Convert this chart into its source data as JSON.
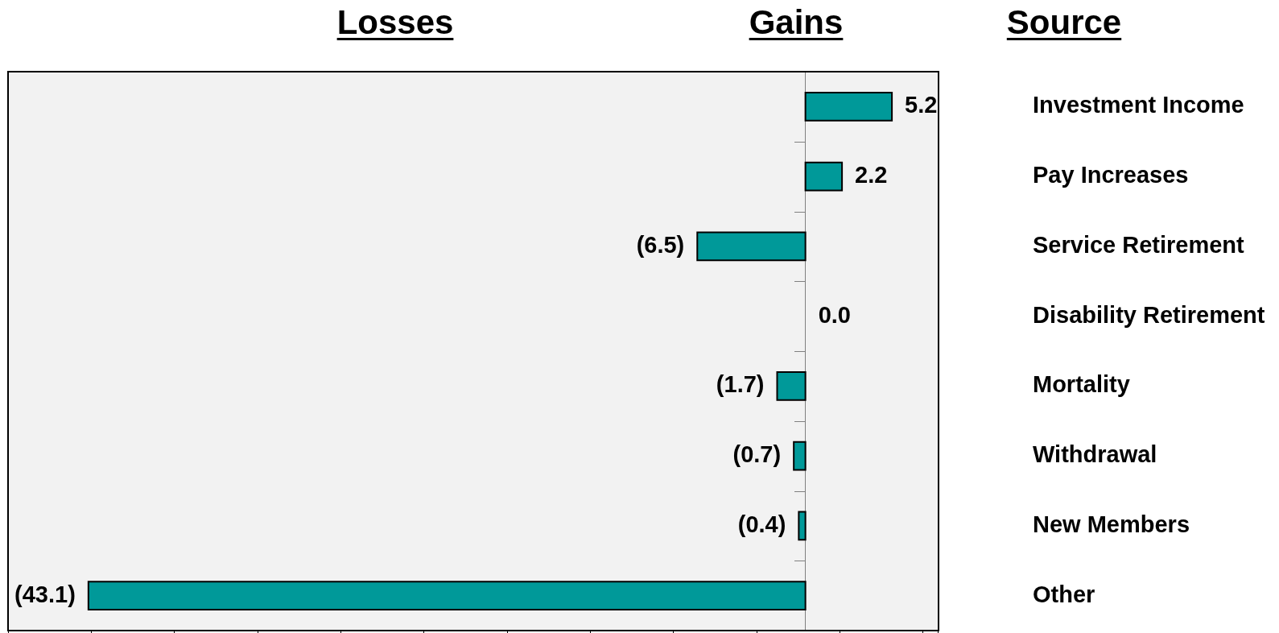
{
  "chart_data": {
    "type": "bar",
    "orientation": "horizontal",
    "annotations": [
      "Losses",
      "Gains"
    ],
    "ylabel": "Source",
    "categories": [
      "Investment Income",
      "Pay Increases",
      "Service Retirement",
      "Disability Retirement",
      "Mortality",
      "Withdrawal",
      "New Members",
      "Other"
    ],
    "values": [
      5.2,
      2.2,
      -6.5,
      0,
      -1.7,
      -0.7,
      -0.4,
      -43.1
    ],
    "value_labels": [
      "5.2",
      "2.2",
      "(6.5)",
      "0.0",
      "(1.7)",
      "(0.7)",
      "(0.4)",
      "(43.1)"
    ],
    "color": "#009999",
    "tick_labels": "y",
    "grid": false,
    "legend": false
  }
}
